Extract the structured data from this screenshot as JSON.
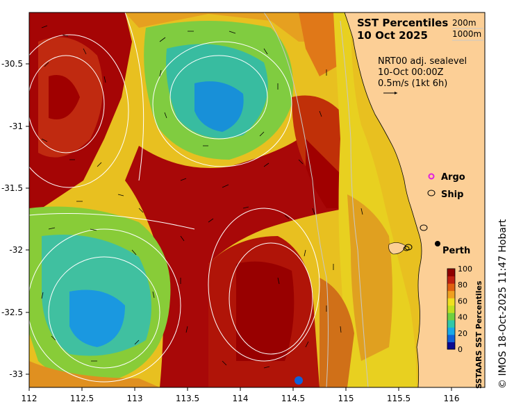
{
  "title": {
    "line1": "SST Percentiles",
    "line2": "10 Oct 2025"
  },
  "contour_legend": {
    "depth1": "200m",
    "depth2": "1000m"
  },
  "current_info": {
    "line1": "NRT00 adj. sealevel",
    "line2": "10-Oct 00:00Z",
    "line3": "0.5m/s (1kt 6h)"
  },
  "markers": {
    "argo_label": "Argo",
    "ship_label": "Ship",
    "city_label": "Perth",
    "argo_color": "#e020e0"
  },
  "colorbar": {
    "title": "SSTAARS SST Percentiles",
    "ticks": [
      "100",
      "80",
      "60",
      "40",
      "20",
      "0"
    ],
    "colors": [
      "#0a0a90",
      "#1060d8",
      "#18a8e8",
      "#30c8a8",
      "#70d040",
      "#c0e020",
      "#f0e020",
      "#f0a020",
      "#e06010",
      "#c02010",
      "#900000"
    ]
  },
  "axes": {
    "x_ticks": [
      "112",
      "112.5",
      "113",
      "113.5",
      "114",
      "114.5",
      "115",
      "115.5",
      "116"
    ],
    "y_ticks": [
      "-30.5",
      "-31",
      "-31.5",
      "-32",
      "-32.5",
      "-33"
    ]
  },
  "credit": "© IMOS 18-Oct-2025 11:47 Hobart",
  "colors": {
    "land": "#fccf96",
    "warm": "#a00000",
    "cool": "#20b8c8"
  }
}
